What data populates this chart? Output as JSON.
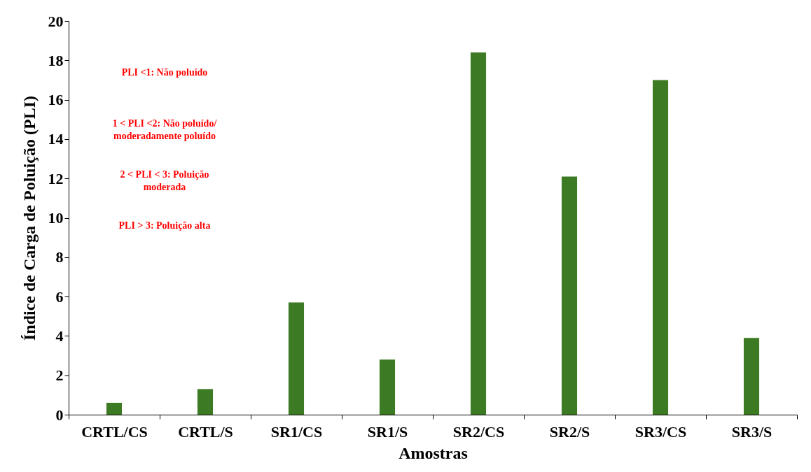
{
  "chart_data": {
    "type": "bar",
    "xlabel": "Amostras",
    "ylabel": "Índice de Carga de Poluição (PLI)",
    "categories": [
      "CRTL/CS",
      "CRTL/S",
      "SR1/CS",
      "SR1/S",
      "SR2/CS",
      "SR2/S",
      "SR3/CS",
      "SR3/S"
    ],
    "values": [
      0.6,
      1.3,
      5.7,
      2.8,
      18.4,
      12.1,
      17.0,
      3.9
    ],
    "color": "#3d7a24",
    "ylim": [
      0,
      20
    ],
    "yticks": [
      0,
      2,
      4,
      6,
      8,
      10,
      12,
      14,
      16,
      18,
      20
    ],
    "grid": false,
    "annotations": [
      "PLI <1: Não poluído",
      "1 < PLI <2: Não poluído/\nmoderadamente poluído",
      "2 < PLI < 3: Poluição\nmoderada",
      "PLI > 3: Poluição alta"
    ]
  }
}
